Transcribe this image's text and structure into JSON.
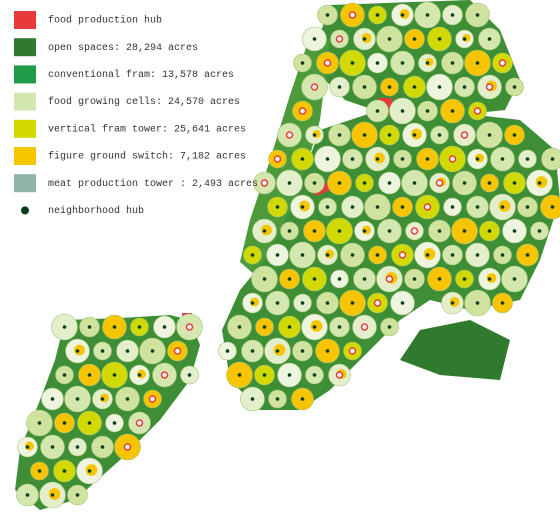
{
  "legend": {
    "items": [
      {
        "label": "food production hub",
        "color": "#e83a3a",
        "shape": "square"
      },
      {
        "label": "open spaces: 28,294 acres",
        "color": "#2f7a2f",
        "shape": "square"
      },
      {
        "label": "conventional fram: 13,578 acres",
        "color": "#1f9a48",
        "shape": "square"
      },
      {
        "label": "food growing cells: 24,570 acres",
        "color": "#d3e7ae",
        "shape": "square"
      },
      {
        "label": "vertical fram tower: 25,641 acres",
        "color": "#d2d900",
        "shape": "square"
      },
      {
        "label": "figure ground switch: 7,182 acres",
        "color": "#f6c500",
        "shape": "square"
      },
      {
        "label": "meat production tower : 2,493 acres",
        "color": "#8fb4a9",
        "shape": "square"
      },
      {
        "label": "neighborhood hub",
        "color": "#0d3a1c",
        "shape": "dot"
      }
    ]
  }
}
